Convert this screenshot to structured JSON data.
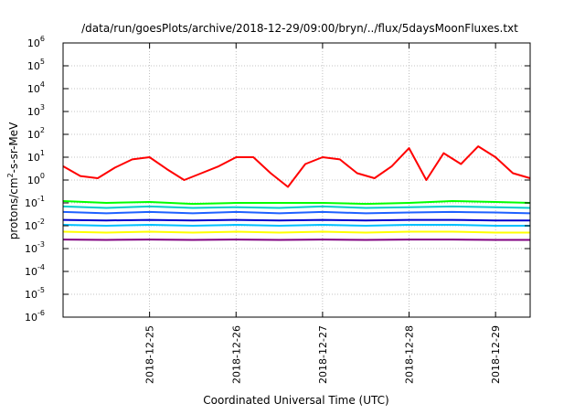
{
  "chart_data": {
    "type": "line",
    "title": "/data/run/goesPlots/archive/2018-12-29/09:00/bryn/../flux/5daysMoonFluxes.txt",
    "xlabel": "Coordinated Universal Time (UTC)",
    "ylabel": {
      "base": "protons/cm",
      "exponent": "2",
      "rest": "-s-sr-MeV"
    },
    "x_axis": {
      "type": "date",
      "range_days": [
        0,
        5.4
      ],
      "tick_labels": [
        "2018-12-25",
        "2018-12-26",
        "2018-12-27",
        "2018-12-28",
        "2018-12-29"
      ],
      "tick_positions_days": [
        1,
        2,
        3,
        4,
        5
      ],
      "start": "2018-12-24 00:00"
    },
    "y_axis": {
      "scale": "log",
      "range": [
        1e-06,
        1000000.0
      ],
      "tick_base": "10",
      "tick_exponents": [
        "-6",
        "-5",
        "-4",
        "-3",
        "-2",
        "-1",
        "0",
        "1",
        "2",
        "3",
        "4",
        "5",
        "6"
      ]
    },
    "grid": true,
    "series": [
      {
        "color": "#ff0000",
        "x": [
          0.0,
          0.2,
          0.4,
          0.6,
          0.8,
          1.0,
          1.2,
          1.4,
          1.6,
          1.8,
          2.0,
          2.2,
          2.4,
          2.6,
          2.8,
          3.0,
          3.2,
          3.4,
          3.6,
          3.8,
          4.0,
          4.2,
          4.4,
          4.6,
          4.8,
          5.0,
          5.2,
          5.4
        ],
        "values": [
          4,
          1.5,
          1.2,
          3.5,
          8,
          10,
          3,
          1,
          2,
          4,
          10,
          10,
          2,
          0.5,
          5,
          10,
          8,
          2,
          1.2,
          4,
          25,
          1,
          15,
          5,
          30,
          10,
          2,
          1.2
        ]
      },
      {
        "color": "#00ff00",
        "x": [
          0.0,
          0.5,
          1.0,
          1.5,
          2.0,
          2.5,
          3.0,
          3.5,
          4.0,
          4.5,
          5.0,
          5.4
        ],
        "values": [
          0.12,
          0.1,
          0.11,
          0.09,
          0.1,
          0.1,
          0.1,
          0.09,
          0.1,
          0.12,
          0.11,
          0.1
        ]
      },
      {
        "color": "#00cccc",
        "x": [
          0.0,
          0.5,
          1.0,
          1.5,
          2.0,
          2.5,
          3.0,
          3.5,
          4.0,
          4.5,
          5.0,
          5.4
        ],
        "values": [
          0.07,
          0.06,
          0.07,
          0.06,
          0.065,
          0.06,
          0.07,
          0.06,
          0.065,
          0.07,
          0.065,
          0.06
        ]
      },
      {
        "color": "#1e60ff",
        "x": [
          0.0,
          0.5,
          1.0,
          1.5,
          2.0,
          2.5,
          3.0,
          3.5,
          4.0,
          4.5,
          5.0,
          5.4
        ],
        "values": [
          0.04,
          0.035,
          0.04,
          0.035,
          0.04,
          0.035,
          0.04,
          0.035,
          0.038,
          0.04,
          0.038,
          0.035
        ]
      },
      {
        "color": "#0000cc",
        "x": [
          0.0,
          0.5,
          1.0,
          1.5,
          2.0,
          2.5,
          3.0,
          3.5,
          4.0,
          4.5,
          5.0,
          5.4
        ],
        "values": [
          0.018,
          0.017,
          0.018,
          0.017,
          0.018,
          0.017,
          0.018,
          0.017,
          0.018,
          0.018,
          0.017,
          0.017
        ]
      },
      {
        "color": "#00bfff",
        "x": [
          0.0,
          0.5,
          1.0,
          1.5,
          2.0,
          2.5,
          3.0,
          3.5,
          4.0,
          4.5,
          5.0,
          5.4
        ],
        "values": [
          0.011,
          0.01,
          0.011,
          0.01,
          0.011,
          0.01,
          0.011,
          0.01,
          0.011,
          0.011,
          0.01,
          0.01
        ]
      },
      {
        "color": "#ffff00",
        "x": [
          0.0,
          0.5,
          1.0,
          1.5,
          2.0,
          2.5,
          3.0,
          3.5,
          4.0,
          4.5,
          5.0,
          5.4
        ],
        "values": [
          0.0055,
          0.005,
          0.0055,
          0.005,
          0.0055,
          0.005,
          0.0055,
          0.005,
          0.0055,
          0.0055,
          0.005,
          0.005
        ]
      },
      {
        "color": "#800080",
        "x": [
          0.0,
          0.5,
          1.0,
          1.5,
          2.0,
          2.5,
          3.0,
          3.5,
          4.0,
          4.5,
          5.0,
          5.4
        ],
        "values": [
          0.0025,
          0.0024,
          0.0025,
          0.0024,
          0.0025,
          0.0024,
          0.0025,
          0.0024,
          0.0025,
          0.0025,
          0.0024,
          0.0024
        ]
      }
    ]
  }
}
